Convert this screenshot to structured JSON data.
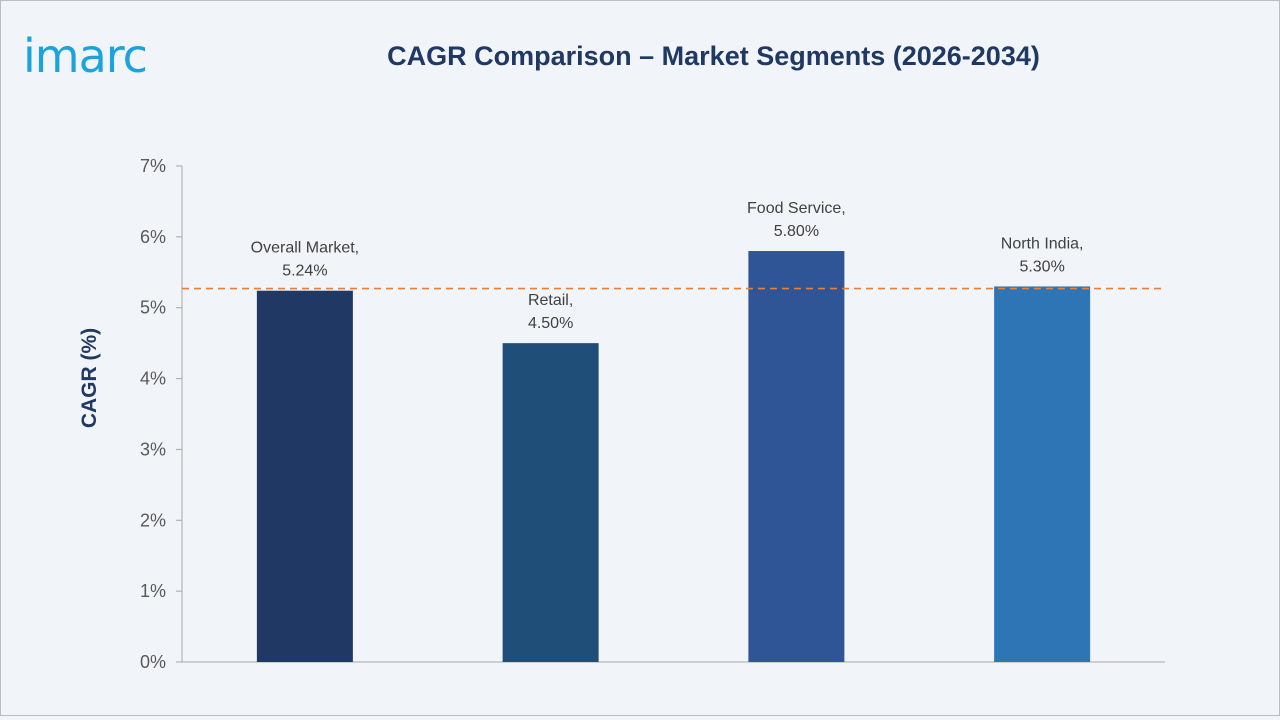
{
  "header": {
    "logo_text": "imarc",
    "title": "CAGR Comparison – Market Segments (2026-2034)"
  },
  "colors": {
    "title": "#1f3864",
    "logo": "#1aa3dd",
    "reference_line": "#ed7d31",
    "background": "#f1f5f9"
  },
  "chart_data": {
    "type": "bar",
    "title": "CAGR Comparison – Market Segments (2026-2034)",
    "xlabel": "",
    "ylabel": "CAGR (%)",
    "ylim": [
      0,
      7
    ],
    "yticks": [
      "0%",
      "1%",
      "2%",
      "3%",
      "4%",
      "5%",
      "6%",
      "7%"
    ],
    "grid": false,
    "legend": "none",
    "categories": [
      "Overall Market",
      "Retail",
      "Food Service",
      "North India"
    ],
    "values": [
      5.24,
      4.5,
      5.8,
      5.3
    ],
    "data_labels": [
      [
        "Overall Market,",
        "5.24%"
      ],
      [
        "Retail,",
        "4.50%"
      ],
      [
        "Food Service,",
        "5.80%"
      ],
      [
        "North India,",
        "5.30%"
      ]
    ],
    "bar_colors": [
      "#1f3864",
      "#1f4e79",
      "#2f5597",
      "#2e75b6"
    ],
    "reference_line": {
      "value": 5.27,
      "style": "dashed",
      "color": "#ed7d31"
    }
  }
}
